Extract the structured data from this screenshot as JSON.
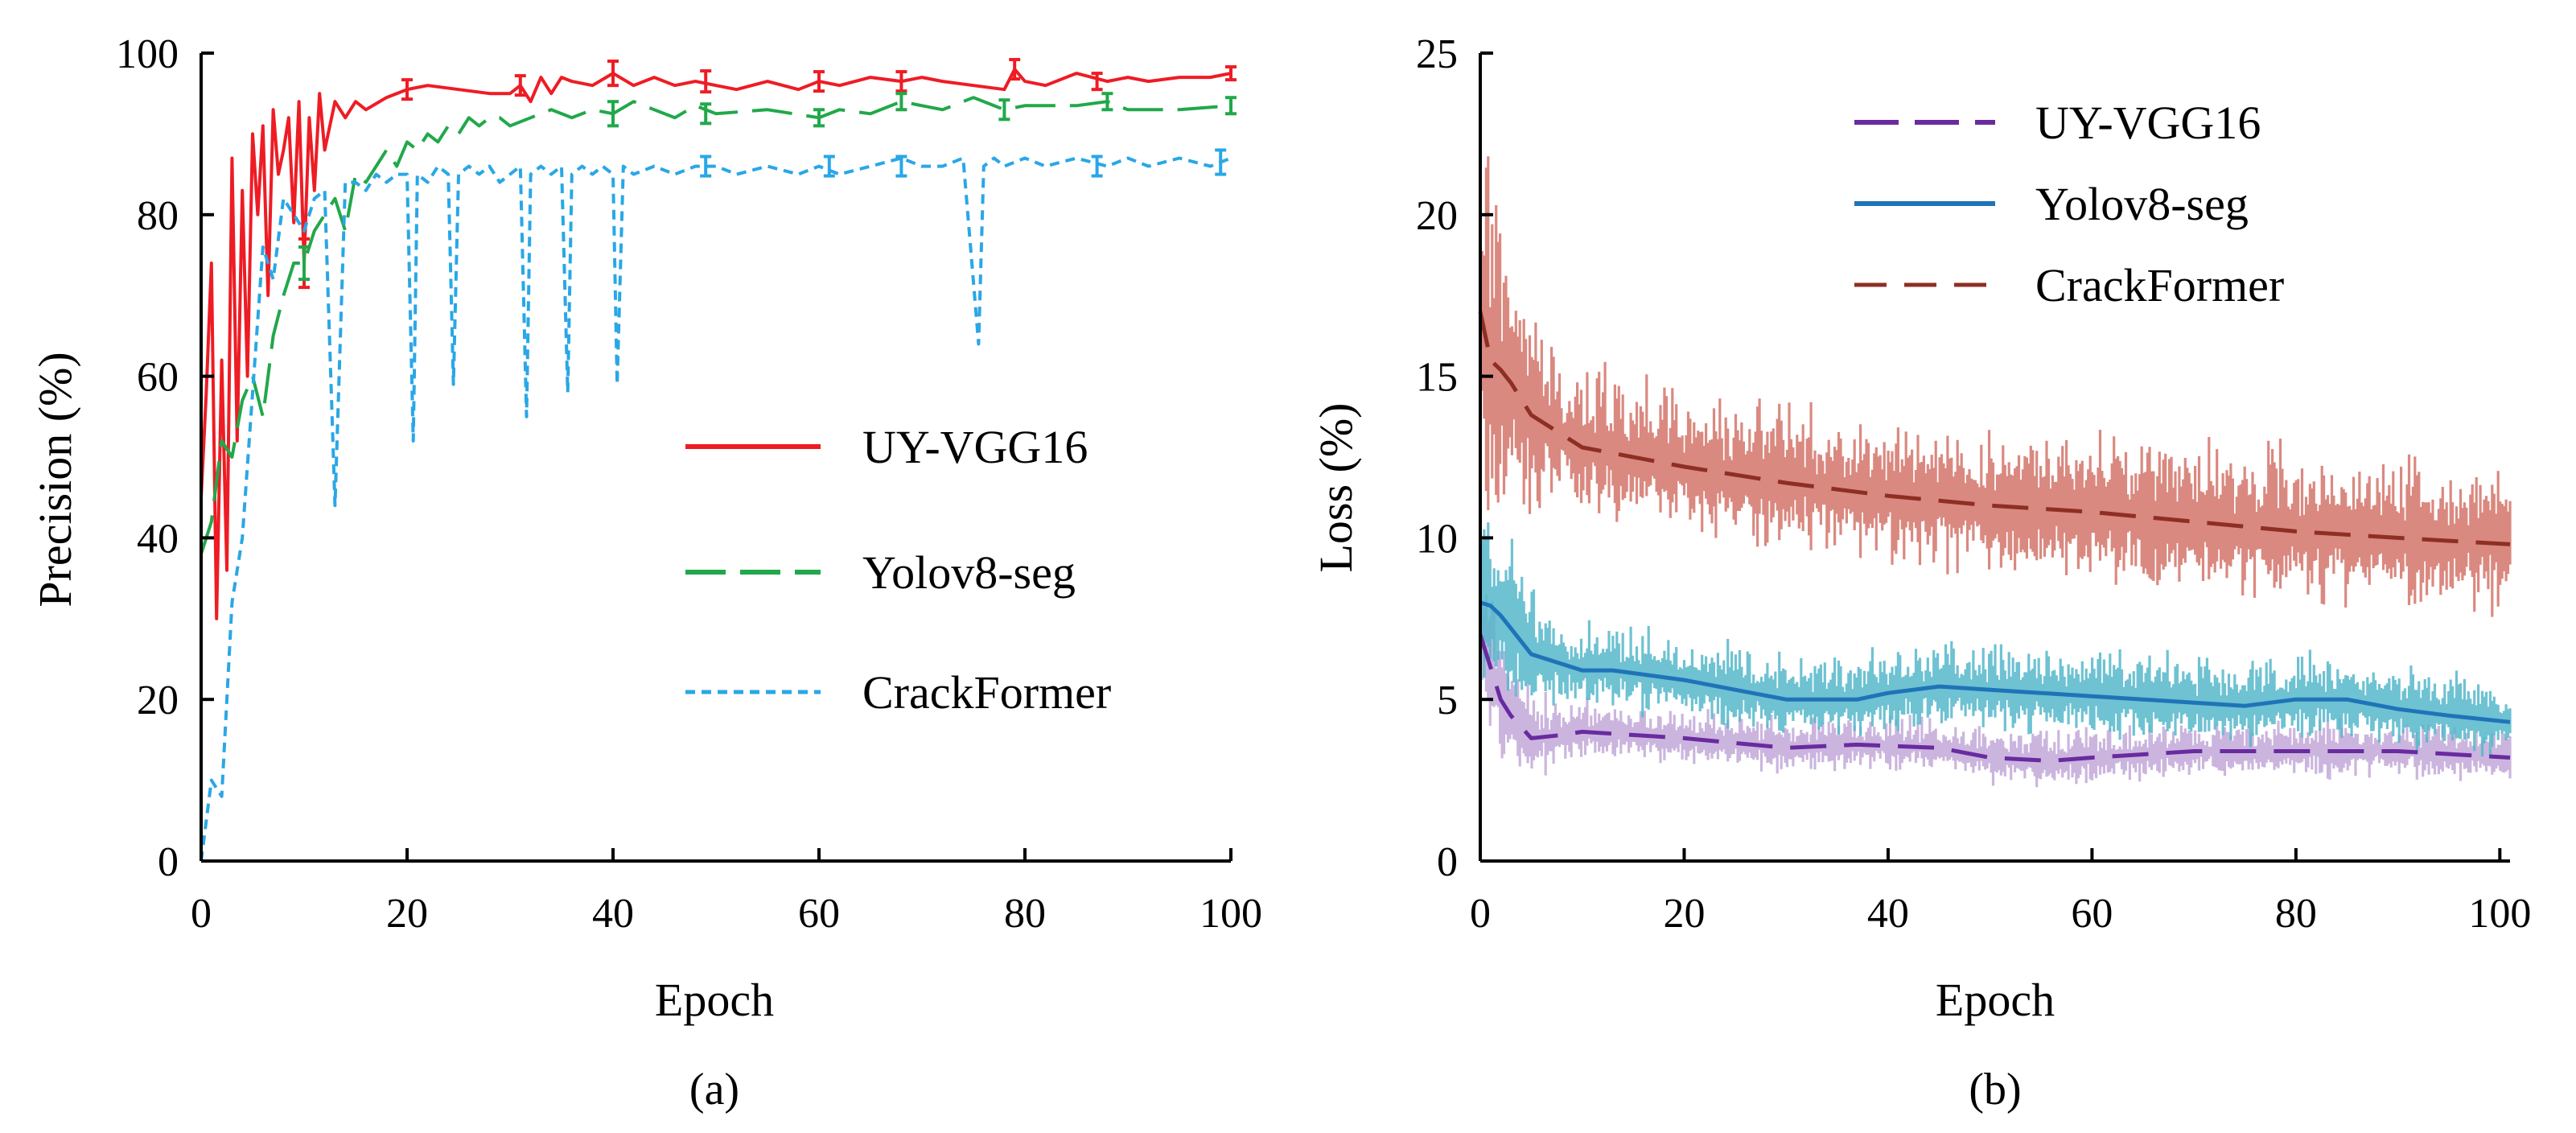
{
  "colors": {
    "uy_red": "#ee1c24",
    "yolo_green": "#21a84a",
    "crack_cyan": "#29a7e6",
    "uy_purple": "#6a2aa0",
    "uy_purple_band": "#c2a8d8",
    "yolo_blue": "#1f74b8",
    "yolo_band": "#55b7ca",
    "crack_brown": "#8e2f24",
    "crack_band": "#d4746a"
  },
  "chart_data": [
    {
      "id": "a",
      "type": "line",
      "caption": "(a)",
      "xlabel": "Epoch",
      "ylabel": "Precision (%)",
      "xlim": [
        0,
        100
      ],
      "ylim": [
        0,
        100
      ],
      "xticks": [
        0,
        20,
        40,
        60,
        80,
        100
      ],
      "yticks": [
        0,
        20,
        40,
        60,
        80,
        100
      ],
      "legend_position": "center-right",
      "series": [
        {
          "key": "uy_vgg16",
          "name": "UY-VGG16",
          "style": "solid",
          "color_key": "uy_red",
          "x": [
            0,
            0.5,
            1,
            1.5,
            2,
            2.5,
            3,
            3.5,
            4,
            4.5,
            5,
            5.5,
            6,
            6.5,
            7,
            7.5,
            8,
            8.5,
            9,
            9.5,
            10,
            10.5,
            11,
            11.5,
            12,
            13,
            14,
            15,
            16,
            18,
            20,
            22,
            25,
            28,
            30,
            31,
            32,
            33,
            34,
            35,
            36,
            38,
            40,
            42,
            44,
            46,
            48,
            50,
            52,
            55,
            58,
            60,
            62,
            65,
            68,
            70,
            72,
            75,
            78,
            79,
            80,
            82,
            85,
            88,
            90,
            92,
            95,
            98,
            100
          ],
          "values": [
            45,
            58,
            74,
            30,
            62,
            36,
            87,
            52,
            83,
            60,
            90,
            80,
            91,
            70,
            93,
            85,
            88,
            92,
            79,
            94,
            74,
            92,
            83,
            95,
            88,
            94,
            92,
            94,
            93,
            94.5,
            95.5,
            96,
            95.5,
            95,
            95,
            96,
            94,
            97,
            95,
            97,
            96.5,
            96,
            97.5,
            96,
            97,
            96,
            96.5,
            96,
            95.5,
            96.5,
            95.5,
            96.5,
            96,
            97,
            96.5,
            97,
            96.5,
            96,
            95.5,
            98,
            96.5,
            96,
            97.5,
            96.5,
            97,
            96.5,
            97,
            97,
            97.5
          ],
          "error_bars": [
            {
              "x": 10,
              "y": 74,
              "err": 3
            },
            {
              "x": 20,
              "y": 95.5,
              "err": 1.2
            },
            {
              "x": 31,
              "y": 96,
              "err": 1.2
            },
            {
              "x": 40,
              "y": 97.5,
              "err": 1.5
            },
            {
              "x": 49,
              "y": 96.5,
              "err": 1.3
            },
            {
              "x": 60,
              "y": 96.5,
              "err": 1.2
            },
            {
              "x": 68,
              "y": 96.5,
              "err": 1.2
            },
            {
              "x": 79,
              "y": 98,
              "err": 1.2
            },
            {
              "x": 87,
              "y": 96.5,
              "err": 1
            },
            {
              "x": 100,
              "y": 97.5,
              "err": 0.8
            }
          ]
        },
        {
          "key": "yolov8_seg",
          "name": "Yolov8-seg",
          "style": "long-dash",
          "color_key": "yolo_green",
          "x": [
            0,
            1,
            2,
            3,
            4,
            5,
            6,
            7,
            8,
            9,
            10,
            11,
            12,
            13,
            14,
            15,
            16,
            17,
            18,
            19,
            20,
            21,
            22,
            23,
            24,
            25,
            26,
            27,
            28,
            29,
            30,
            32,
            34,
            36,
            38,
            40,
            42,
            44,
            46,
            48,
            50,
            55,
            60,
            62,
            65,
            68,
            70,
            72,
            75,
            78,
            80,
            85,
            88,
            90,
            95,
            100
          ],
          "values": [
            38,
            42,
            52,
            50,
            57,
            60,
            55,
            65,
            70,
            74,
            74,
            78,
            80,
            82,
            78,
            85,
            84,
            86,
            88,
            86,
            89,
            88,
            90,
            89,
            91,
            90,
            92,
            91,
            92,
            92,
            91,
            92,
            93,
            92,
            93,
            92.5,
            94,
            93,
            92,
            93.5,
            92.5,
            93,
            92,
            93,
            92.5,
            94,
            93.5,
            93,
            94.5,
            93,
            93.5,
            93.5,
            94,
            93,
            93,
            93.5
          ],
          "error_bars": [
            {
              "x": 10,
              "y": 74,
              "err": 2
            },
            {
              "x": 40,
              "y": 92.5,
              "err": 1.5
            },
            {
              "x": 49,
              "y": 92.5,
              "err": 1.2
            },
            {
              "x": 60,
              "y": 92,
              "err": 1
            },
            {
              "x": 68,
              "y": 94,
              "err": 1
            },
            {
              "x": 78,
              "y": 93,
              "err": 1.2
            },
            {
              "x": 88,
              "y": 94,
              "err": 1
            },
            {
              "x": 100,
              "y": 93.5,
              "err": 1
            }
          ]
        },
        {
          "key": "crackformer",
          "name": "CrackFormer",
          "style": "short-dash",
          "color_key": "crack_cyan",
          "x": [
            0,
            1,
            2,
            3,
            4,
            5,
            6,
            7,
            8,
            9,
            10,
            11,
            12,
            13,
            14,
            15,
            16,
            17,
            18,
            19,
            20,
            20.6,
            21,
            22,
            23,
            24,
            24.5,
            25,
            26,
            27,
            28,
            29,
            30,
            31,
            31.6,
            32,
            33,
            34,
            35,
            35.6,
            36,
            37,
            38,
            39,
            40,
            40.4,
            41,
            42,
            44,
            46,
            48,
            50,
            52,
            55,
            58,
            60,
            62,
            65,
            68,
            70,
            72,
            74,
            75.5,
            76,
            77,
            78,
            80,
            82,
            85,
            88,
            90,
            92,
            95,
            98,
            100
          ],
          "values": [
            0,
            10,
            8,
            32,
            40,
            58,
            76,
            72,
            82,
            80,
            78,
            82,
            83,
            44,
            84,
            84,
            83,
            85,
            84,
            85,
            85,
            52,
            85,
            84,
            86,
            85,
            59,
            85,
            86,
            85,
            86,
            84,
            85,
            86,
            55,
            85,
            86,
            85,
            86,
            58,
            85,
            86,
            85,
            86,
            85,
            59,
            86,
            85,
            86,
            85,
            86,
            86,
            85,
            86,
            85,
            86,
            85,
            86,
            87,
            86,
            86,
            87,
            64,
            86,
            87,
            86,
            87,
            86,
            87,
            86,
            87,
            86,
            87,
            86,
            87
          ],
          "error_bars": [
            {
              "x": 49,
              "y": 86,
              "err": 1.2
            },
            {
              "x": 61,
              "y": 86,
              "err": 1.2
            },
            {
              "x": 68,
              "y": 86,
              "err": 1.2
            },
            {
              "x": 87,
              "y": 86,
              "err": 1.2
            },
            {
              "x": 99,
              "y": 86.5,
              "err": 1.5
            }
          ]
        }
      ]
    },
    {
      "id": "b",
      "type": "line",
      "caption": "(b)",
      "xlabel": "Epoch",
      "ylabel": "Loss (%)",
      "xlim": [
        0,
        101
      ],
      "ylim": [
        0,
        25
      ],
      "xticks": [
        0,
        20,
        40,
        60,
        80,
        100
      ],
      "yticks": [
        0,
        5,
        10,
        15,
        20,
        25
      ],
      "legend_position": "top-center",
      "series": [
        {
          "key": "uy_vgg16",
          "name": "UY-VGG16",
          "style": "long-dash",
          "color_key": "uy_purple",
          "band_color_key": "uy_purple_band",
          "band_spread": 0.6,
          "x": [
            0,
            1,
            2,
            3,
            5,
            8,
            10,
            15,
            20,
            30,
            37,
            45,
            50,
            56,
            60,
            70,
            80,
            90,
            101
          ],
          "values": [
            7,
            6,
            5,
            4.5,
            3.8,
            3.9,
            4,
            3.9,
            3.8,
            3.5,
            3.6,
            3.5,
            3.2,
            3.1,
            3.2,
            3.4,
            3.4,
            3.4,
            3.2
          ]
        },
        {
          "key": "yolov8_seg",
          "name": "Yolov8-seg",
          "style": "solid",
          "color_key": "yolo_blue",
          "band_color_key": "yolo_band",
          "band_spread": 0.9,
          "x": [
            0,
            1,
            2,
            3,
            5,
            10,
            13,
            20,
            25,
            30,
            37,
            40,
            45,
            50,
            60,
            70,
            75,
            80,
            85,
            90,
            95,
            101
          ],
          "values": [
            8,
            7.9,
            7.6,
            7.2,
            6.4,
            5.9,
            5.9,
            5.6,
            5.3,
            5,
            5,
            5.2,
            5.4,
            5.3,
            5.1,
            4.9,
            4.8,
            5,
            5,
            4.7,
            4.5,
            4.3
          ]
        },
        {
          "key": "crackformer",
          "name": "CrackFormer",
          "style": "long-dash",
          "color_key": "crack_brown",
          "band_color_key": "crack_band",
          "band_spread": 1.6,
          "x": [
            0,
            1,
            2,
            3,
            5,
            10,
            20,
            30,
            40,
            50,
            60,
            70,
            80,
            90,
            101
          ],
          "values": [
            17,
            15.5,
            15.2,
            14.8,
            13.8,
            12.8,
            12.2,
            11.7,
            11.3,
            11,
            10.8,
            10.5,
            10.2,
            10,
            9.8
          ]
        }
      ]
    }
  ]
}
